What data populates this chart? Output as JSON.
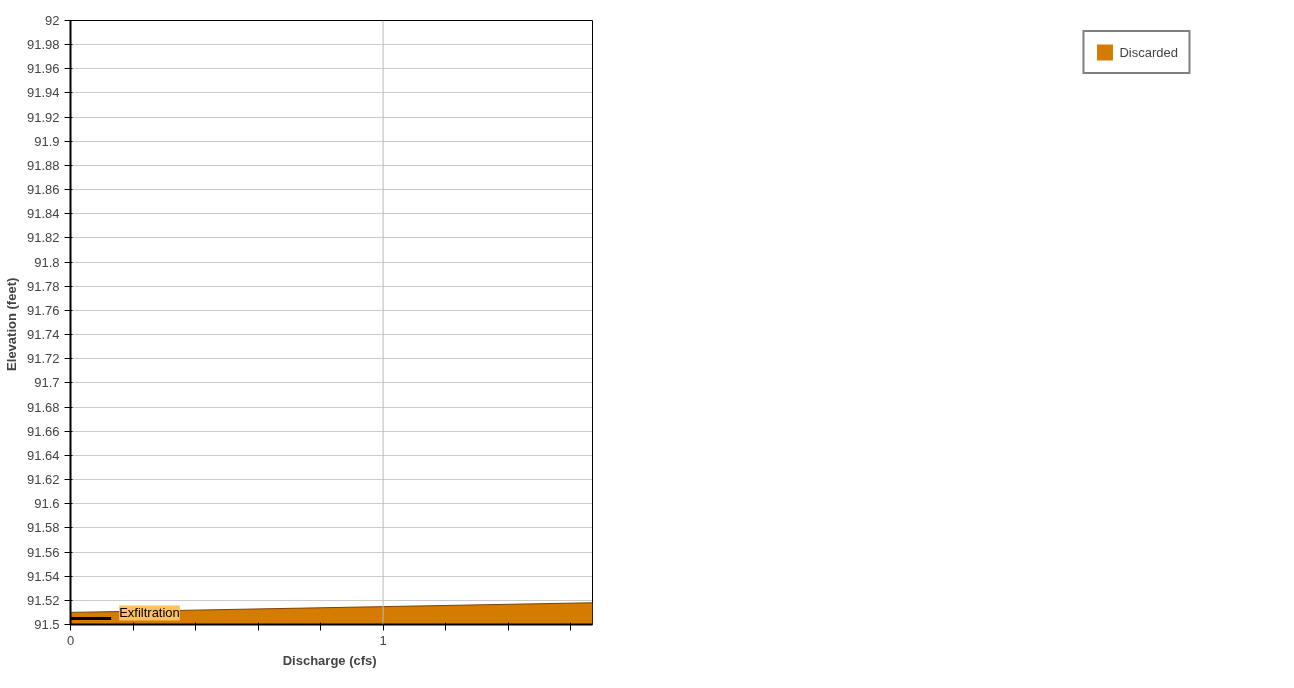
{
  "chart_data": {
    "type": "area",
    "xlabel": "Discharge  (cfs)",
    "ylabel": "Elevation  (feet)",
    "xlim": [
      0,
      1.67
    ],
    "ylim": [
      91.5,
      92
    ],
    "xticks": [
      0,
      {
        "value": 0.2,
        "label": null
      },
      {
        "value": 0.4,
        "label": null
      },
      {
        "value": 0.6,
        "label": null
      },
      {
        "value": 0.8,
        "label": null
      },
      1,
      {
        "value": 1.2,
        "label": null
      },
      {
        "value": 1.4,
        "label": null
      },
      {
        "value": 1.6,
        "label": null
      }
    ],
    "yticks": [
      91.5,
      91.52,
      91.54,
      91.56,
      91.58,
      91.6,
      91.62,
      91.64,
      91.66,
      91.68,
      91.7,
      91.72,
      91.74,
      91.76,
      91.78,
      91.8,
      91.82,
      91.84,
      91.86,
      91.88,
      91.9,
      91.92,
      91.94,
      91.96,
      91.98,
      92
    ],
    "grid": "y",
    "legend": "top right",
    "ref_lines": [
      {
        "axis": "x",
        "value": 1,
        "color": "#bbbbbb"
      }
    ],
    "series": [
      {
        "name": "Discarded",
        "color": "#d47b00",
        "x": [
          0,
          1.67
        ],
        "values": [
          91.51,
          91.518
        ]
      },
      {
        "name": "Exfiltration",
        "type": "line",
        "color": "#000000",
        "x": [
          0,
          0.13
        ],
        "values": [
          91.505,
          91.505
        ]
      }
    ]
  }
}
